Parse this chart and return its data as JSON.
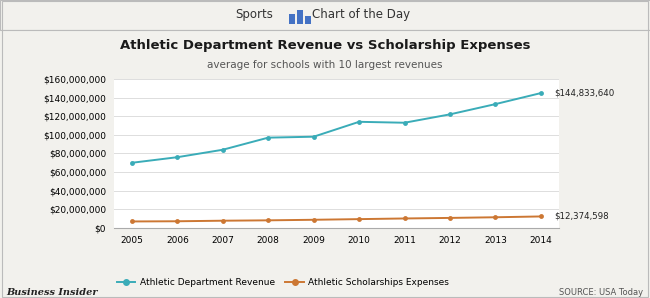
{
  "years": [
    2005,
    2006,
    2007,
    2008,
    2009,
    2010,
    2011,
    2012,
    2013,
    2014
  ],
  "revenue": [
    70000000,
    76000000,
    84000000,
    97000000,
    98000000,
    114000000,
    113000000,
    122000000,
    133000000,
    144833640
  ],
  "expenses": [
    7000000,
    7200000,
    7800000,
    8200000,
    8800000,
    9500000,
    10200000,
    10800000,
    11500000,
    12374598
  ],
  "revenue_color": "#3AACB8",
  "expenses_color": "#CC7733",
  "revenue_label": "Athletic Department Revenue",
  "expenses_label": "Athletic Scholarships Expenses",
  "title": "Athletic Department Revenue vs Scholarship Expenses",
  "subtitle": "average for schools with 10 largest revenues",
  "revenue_annotation": "$144,833,640",
  "expenses_annotation": "$12,374,598",
  "footer_left": "Business Insider",
  "footer_right": "SOURCE: USA Today",
  "ylim": [
    0,
    160000000
  ],
  "ytick_step": 20000000,
  "bg_color": "#F2F1ED",
  "plot_bg_color": "#FFFFFF",
  "header_bg": "#FFFFFF",
  "grid_color": "#DDDDDD",
  "border_color": "#BBBBBB"
}
